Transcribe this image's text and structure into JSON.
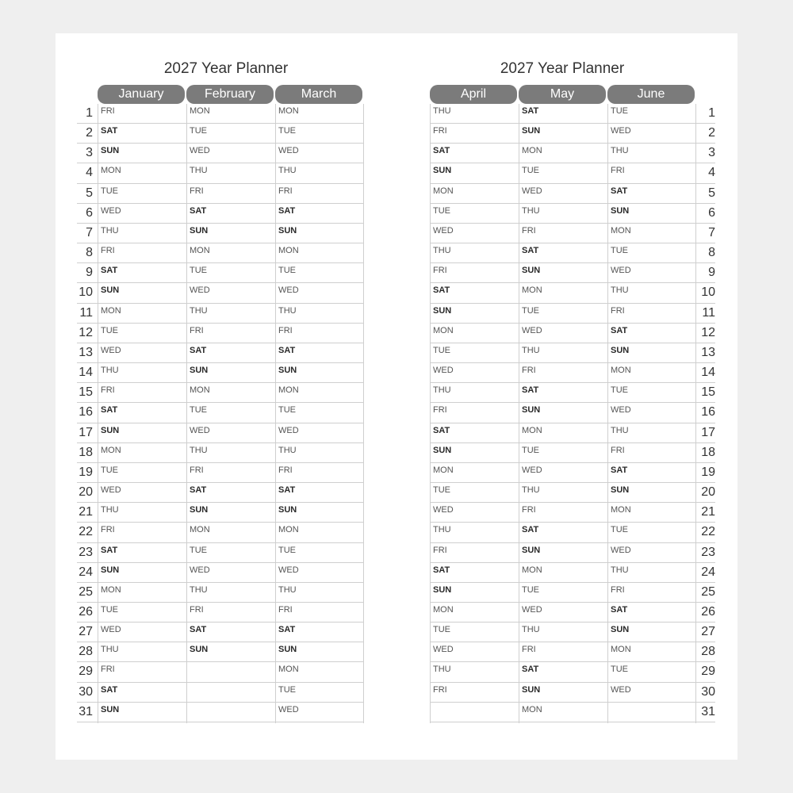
{
  "left": {
    "title": "2027 Year Planner",
    "months": [
      {
        "name": "January",
        "days": [
          "FRI",
          "SAT",
          "SUN",
          "MON",
          "TUE",
          "WED",
          "THU",
          "FRI",
          "SAT",
          "SUN",
          "MON",
          "TUE",
          "WED",
          "THU",
          "FRI",
          "SAT",
          "SUN",
          "MON",
          "TUE",
          "WED",
          "THU",
          "FRI",
          "SAT",
          "SUN",
          "MON",
          "TUE",
          "WED",
          "THU",
          "FRI",
          "SAT",
          "SUN"
        ]
      },
      {
        "name": "February",
        "days": [
          "MON",
          "TUE",
          "WED",
          "THU",
          "FRI",
          "SAT",
          "SUN",
          "MON",
          "TUE",
          "WED",
          "THU",
          "FRI",
          "SAT",
          "SUN",
          "MON",
          "TUE",
          "WED",
          "THU",
          "FRI",
          "SAT",
          "SUN",
          "MON",
          "TUE",
          "WED",
          "THU",
          "FRI",
          "SAT",
          "SUN"
        ]
      },
      {
        "name": "March",
        "days": [
          "MON",
          "TUE",
          "WED",
          "THU",
          "FRI",
          "SAT",
          "SUN",
          "MON",
          "TUE",
          "WED",
          "THU",
          "FRI",
          "SAT",
          "SUN",
          "MON",
          "TUE",
          "WED",
          "THU",
          "FRI",
          "SAT",
          "SUN",
          "MON",
          "TUE",
          "WED",
          "THU",
          "FRI",
          "SAT",
          "SUN",
          "MON",
          "TUE",
          "WED"
        ]
      }
    ]
  },
  "right": {
    "title": "2027 Year Planner",
    "months": [
      {
        "name": "April",
        "days": [
          "THU",
          "FRI",
          "SAT",
          "SUN",
          "MON",
          "TUE",
          "WED",
          "THU",
          "FRI",
          "SAT",
          "SUN",
          "MON",
          "TUE",
          "WED",
          "THU",
          "FRI",
          "SAT",
          "SUN",
          "MON",
          "TUE",
          "WED",
          "THU",
          "FRI",
          "SAT",
          "SUN",
          "MON",
          "TUE",
          "WED",
          "THU",
          "FRI"
        ]
      },
      {
        "name": "May",
        "days": [
          "SAT",
          "SUN",
          "MON",
          "TUE",
          "WED",
          "THU",
          "FRI",
          "SAT",
          "SUN",
          "MON",
          "TUE",
          "WED",
          "THU",
          "FRI",
          "SAT",
          "SUN",
          "MON",
          "TUE",
          "WED",
          "THU",
          "FRI",
          "SAT",
          "SUN",
          "MON",
          "TUE",
          "WED",
          "THU",
          "FRI",
          "SAT",
          "SUN",
          "MON"
        ]
      },
      {
        "name": "June",
        "days": [
          "TUE",
          "WED",
          "THU",
          "FRI",
          "SAT",
          "SUN",
          "MON",
          "TUE",
          "WED",
          "THU",
          "FRI",
          "SAT",
          "SUN",
          "MON",
          "TUE",
          "WED",
          "THU",
          "FRI",
          "SAT",
          "SUN",
          "MON",
          "TUE",
          "WED",
          "THU",
          "FRI",
          "SAT",
          "SUN",
          "MON",
          "TUE",
          "WED"
        ]
      }
    ]
  },
  "day_numbers": [
    "1",
    "2",
    "3",
    "4",
    "5",
    "6",
    "7",
    "8",
    "9",
    "10",
    "11",
    "12",
    "13",
    "14",
    "15",
    "16",
    "17",
    "18",
    "19",
    "20",
    "21",
    "22",
    "23",
    "24",
    "25",
    "26",
    "27",
    "28",
    "29",
    "30",
    "31"
  ],
  "colors": {
    "header_bg": "#7b7b7b",
    "weekend_text": "#2a2a2a"
  }
}
